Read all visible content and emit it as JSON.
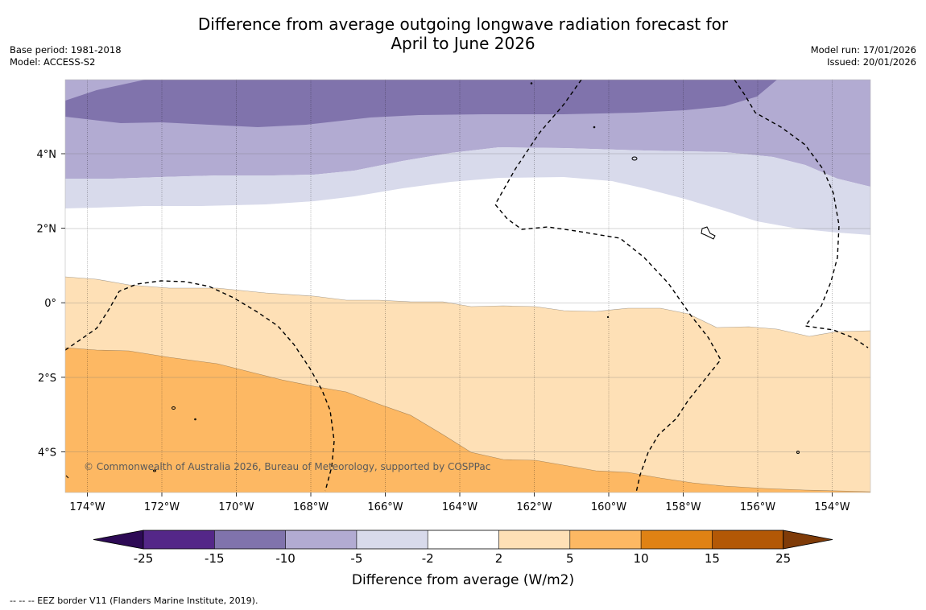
{
  "title_line1": "Difference from average outgoing longwave radiation forecast for",
  "title_line2": "April to June 2026",
  "base_period": "Base period: 1981-2018",
  "model": "Model: ACCESS-S2",
  "model_run": "Model run: 17/01/2026",
  "issued": "Issued: 20/01/2026",
  "copyright": "© Commonwealth of Australia 2026, Bureau of Meteorology, supported by COSPPac",
  "x_ticks": [
    "174°W",
    "172°W",
    "170°W",
    "168°W",
    "166°W",
    "164°W",
    "162°W",
    "160°W",
    "158°W",
    "156°W",
    "154°W"
  ],
  "y_ticks": [
    "4°N",
    "2°N",
    "0°",
    "2°S",
    "4°S"
  ],
  "colorbar": {
    "ticks": [
      "-25",
      "-15",
      "-10",
      "-5",
      "-2",
      "2",
      "5",
      "10",
      "15",
      "25"
    ],
    "label": "Difference from average (W/m2)",
    "colors": [
      "#2d0a55",
      "#542788",
      "#8073ac",
      "#b2abd2",
      "#d8daeb",
      "#ffffff",
      "#fee0b6",
      "#fdb863",
      "#e08214",
      "#b35806",
      "#7f3b08"
    ]
  },
  "footnote": "--  --  -- EEZ border V11 (Flanders Marine Institute, 2019).",
  "chart_data": {
    "type": "contour-map",
    "variable": "Difference from average outgoing longwave radiation (W/m2)",
    "x_range": [
      "174.6°W",
      "153.0°W"
    ],
    "y_range": [
      "5.2°S",
      "6°N"
    ],
    "bands": [
      {
        "range": "-15 to -10",
        "region": "north of ~5°N"
      },
      {
        "range": "-10 to -5",
        "region": "~3.5°N to 5°N"
      },
      {
        "range": "-5 to -2",
        "region": "~2.5°N to 3.5°N"
      },
      {
        "range": "-2 to 2",
        "region": "~0.5°N to 2.5°N"
      },
      {
        "range": "2 to 5",
        "region": "~1°S to 0.5°N, expanding south to the east"
      },
      {
        "range": "5 to 10",
        "region": "south-west corner, south of ~1°S"
      }
    ]
  }
}
